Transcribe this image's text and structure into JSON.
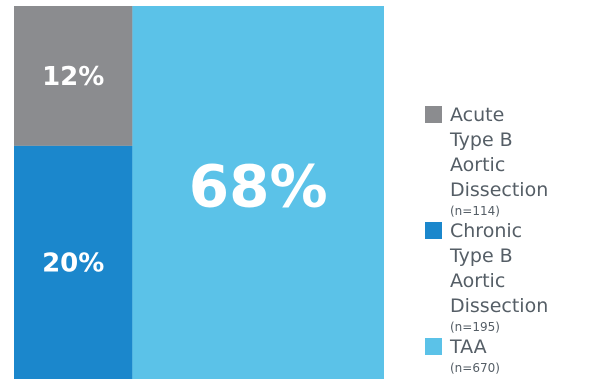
{
  "chart_data": {
    "type": "treemap",
    "segments": [
      {
        "label": "12%",
        "value": 12,
        "color": "#8b8c8f"
      },
      {
        "label": "20%",
        "value": 20,
        "color": "#1b87cc"
      },
      {
        "label": "68%",
        "value": 68,
        "color": "#5bc2e8"
      }
    ],
    "legend": [
      {
        "label": "Acute\nType B Aortic\nDissection",
        "n": "(n=114)",
        "color": "#8b8c8f"
      },
      {
        "label": "Chronic\nType B Aortic\nDissection",
        "n": "(n=195)",
        "color": "#1b87cc"
      },
      {
        "label": "TAA",
        "n": "(n=670)",
        "color": "#5bc2e8"
      }
    ],
    "legend_position": "right"
  }
}
